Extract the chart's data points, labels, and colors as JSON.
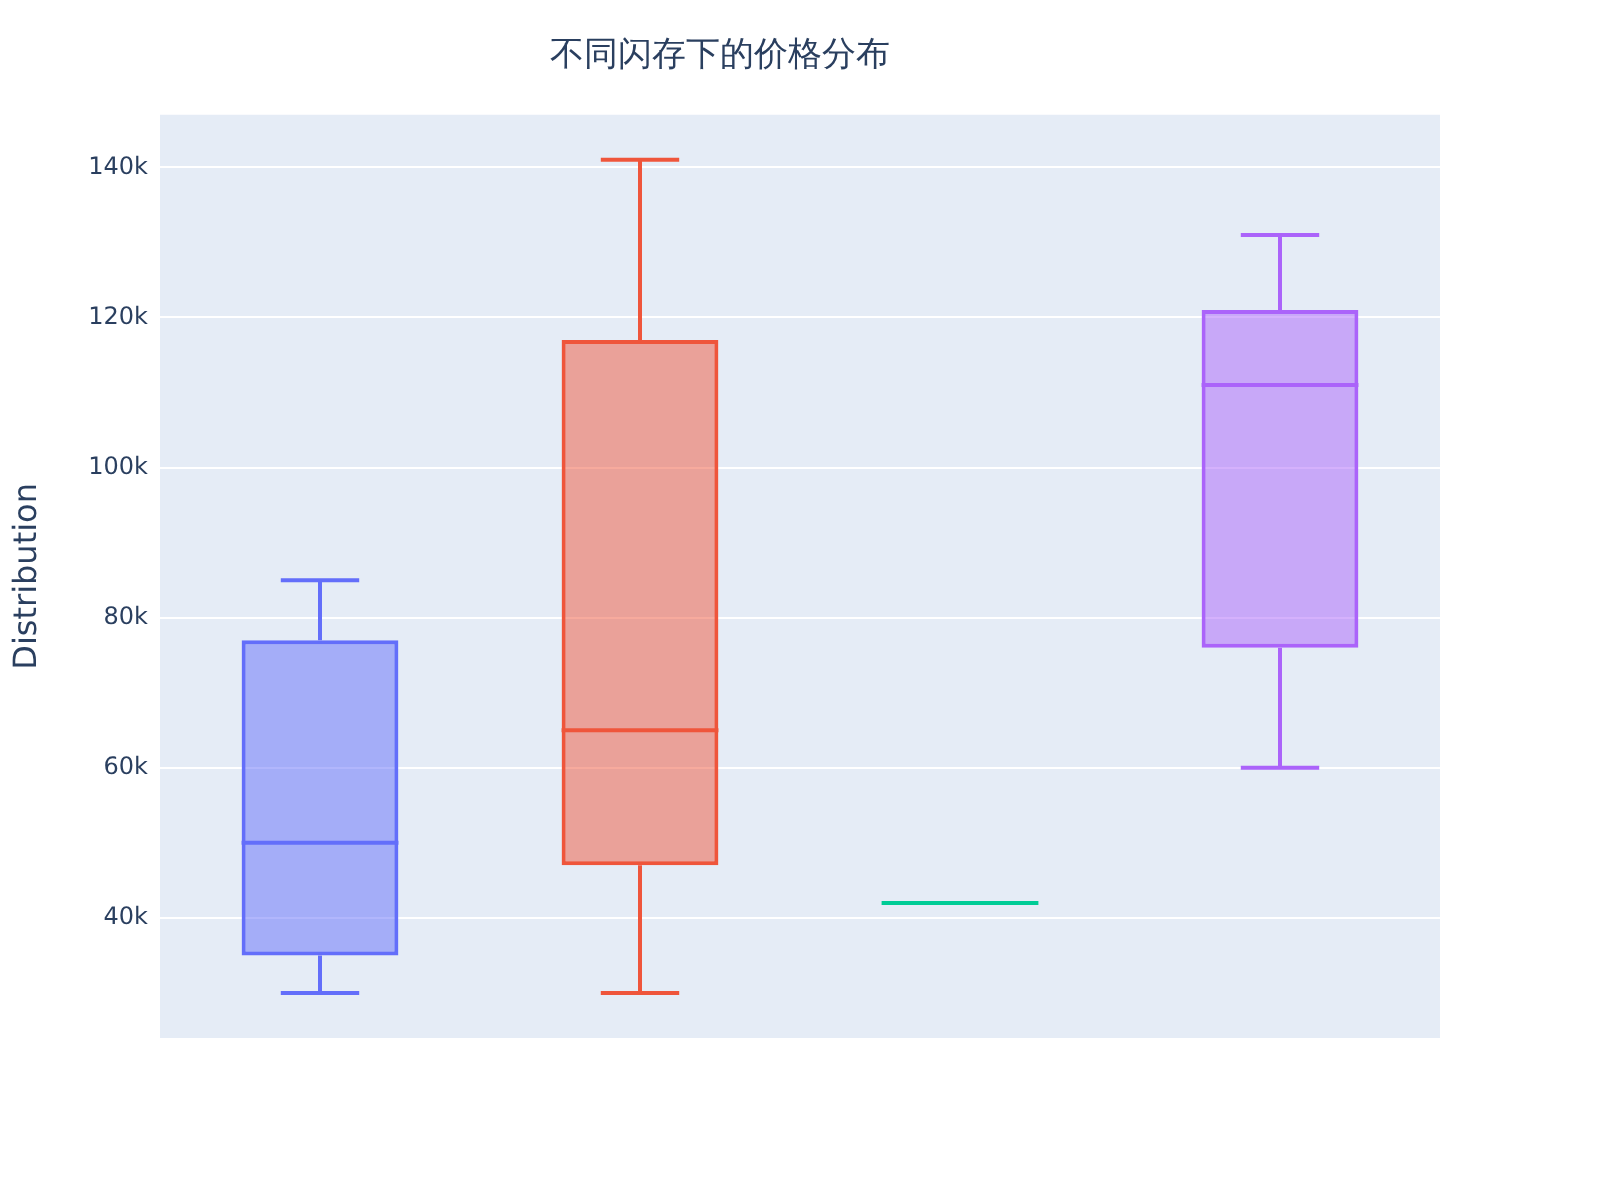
{
  "chart_data": {
    "type": "box",
    "title": "不同闪存下的价格分布",
    "ylabel": "Distribution",
    "categories": [
      null,
      null,
      null,
      null
    ],
    "colors": [
      "#636efa",
      "#ef553b",
      "#00cc96",
      "#ab63fa"
    ],
    "boxes": [
      {
        "low": 30000,
        "q1": 35000,
        "median": 50000,
        "q3": 77000,
        "high": 85000
      },
      {
        "low": 30000,
        "q1": 47000,
        "median": 65000,
        "q3": 117000,
        "high": 141000
      },
      {
        "low": 42000,
        "q1": 42000,
        "median": 42000,
        "q3": 42000,
        "high": 42000
      },
      {
        "low": 60000,
        "q1": 76000,
        "median": 111000,
        "q3": 121000,
        "high": 131000
      }
    ],
    "ylim": [
      24000,
      147000
    ],
    "yticks": [
      {
        "value": 40000,
        "label": "40k"
      },
      {
        "value": 60000,
        "label": "60k"
      },
      {
        "value": 80000,
        "label": "80k"
      },
      {
        "value": 100000,
        "label": "100k"
      },
      {
        "value": 120000,
        "label": "120k"
      },
      {
        "value": 140000,
        "label": "140k"
      }
    ],
    "grid": "y",
    "legend": false
  }
}
